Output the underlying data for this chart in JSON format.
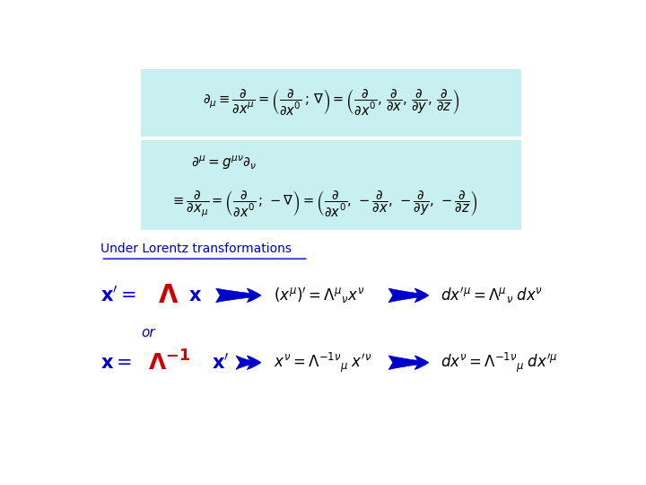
{
  "bg_color": "#ffffff",
  "box1_color": "#c8f0f0",
  "box2_color": "#c8f0f0",
  "blue_color": "#0000cc",
  "red_color": "#cc0000",
  "arrow_color": "#0000cc",
  "title": "Under Lorentz transformations"
}
